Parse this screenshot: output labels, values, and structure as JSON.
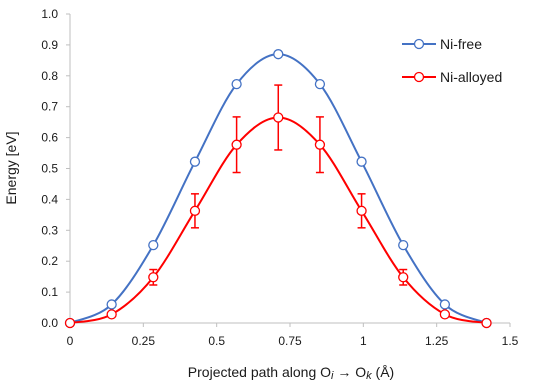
{
  "chart_data": {
    "type": "line",
    "xlabel": {
      "main": "Projected path along O",
      "sub_i": "i",
      "arrow": " → O",
      "sub_k": "k",
      "units": " (Å)"
    },
    "ylabel": "Energy [eV]",
    "xlim": [
      0,
      1.5
    ],
    "ylim": [
      0,
      1.0
    ],
    "x_ticks": [
      "0",
      "0.25",
      "0.5",
      "0.75",
      "1",
      "1.25",
      "1.5"
    ],
    "y_ticks": [
      "0.0",
      "0.1",
      "0.2",
      "0.3",
      "0.4",
      "0.5",
      "0.6",
      "0.7",
      "0.8",
      "0.9",
      "1.0"
    ],
    "grid": false,
    "legend_position": "top-right",
    "series": [
      {
        "name": "Ni-free",
        "color": "#4472C4",
        "marker": "circle-open",
        "x": [
          0,
          0.142,
          0.284,
          0.426,
          0.568,
          0.71,
          0.852,
          0.994,
          1.136,
          1.278,
          1.42
        ],
        "y": [
          0.0,
          0.06,
          0.252,
          0.522,
          0.773,
          0.87,
          0.773,
          0.522,
          0.252,
          0.06,
          0.0
        ]
      },
      {
        "name": "Ni-alloyed",
        "color": "#FF0000",
        "marker": "circle-open",
        "x": [
          0,
          0.142,
          0.284,
          0.426,
          0.568,
          0.71,
          0.852,
          0.994,
          1.136,
          1.278,
          1.42
        ],
        "y": [
          0.0,
          0.028,
          0.148,
          0.363,
          0.577,
          0.665,
          0.577,
          0.363,
          0.148,
          0.028,
          0.0
        ],
        "error": [
          0,
          0,
          0.025,
          0.055,
          0.09,
          0.105,
          0.09,
          0.055,
          0.025,
          0,
          0
        ]
      }
    ]
  }
}
